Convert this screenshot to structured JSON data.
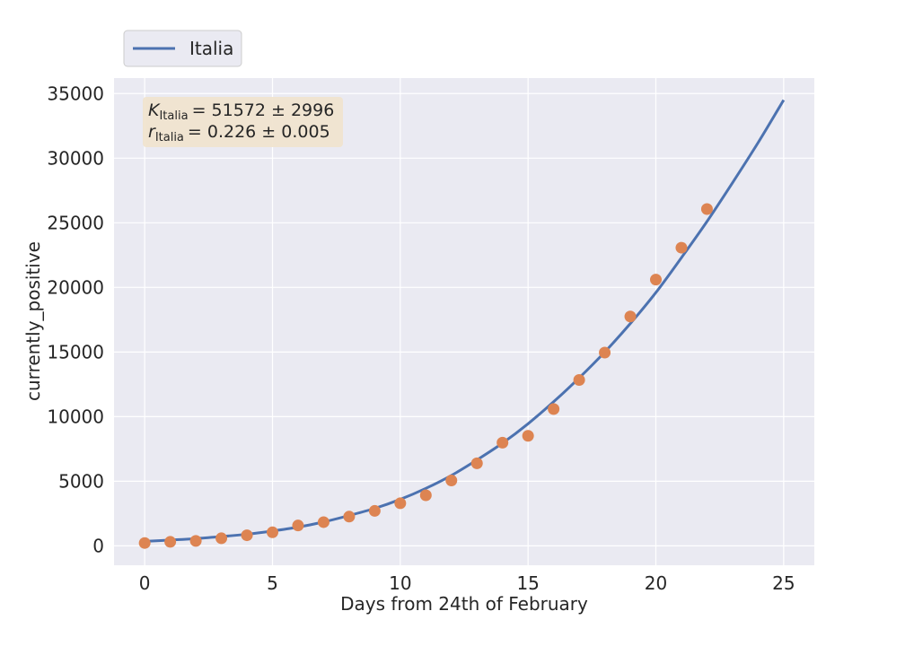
{
  "chart_data": {
    "type": "line",
    "title": "",
    "xlabel": "Days from 24th of February",
    "ylabel": "currently_positive",
    "xlim": [
      -1.2,
      26.2
    ],
    "ylim": [
      -1500,
      36200
    ],
    "xticks": [
      0,
      5,
      10,
      15,
      20,
      25
    ],
    "yticks": [
      0,
      5000,
      10000,
      15000,
      20000,
      25000,
      30000,
      35000
    ],
    "grid": true,
    "legend": {
      "placement": "top-left (outside, above plot)",
      "entries": [
        "Italia"
      ]
    },
    "colors": {
      "background": "#eaeaf2",
      "grid": "#ffffff",
      "fit_line": "#4c72b0",
      "points": "#dd8452",
      "annotation_box": "#f0e4cf"
    },
    "series": [
      {
        "name": "Italia",
        "kind": "line",
        "x": [
          0,
          1,
          2,
          3,
          4,
          5,
          6,
          7,
          8,
          9,
          10,
          11,
          12,
          13,
          14,
          15,
          16,
          17,
          18,
          19,
          20,
          21,
          22,
          23,
          24,
          25
        ],
        "y": [
          350,
          450,
          560,
          720,
          900,
          1150,
          1450,
          1850,
          2350,
          2900,
          3600,
          4450,
          5450,
          6650,
          7950,
          9450,
          11150,
          13000,
          15000,
          17200,
          19600,
          22300,
          25100,
          28100,
          31200,
          34500
        ]
      },
      {
        "name": "",
        "kind": "scatter",
        "x": [
          0,
          1,
          2,
          3,
          4,
          5,
          6,
          7,
          8,
          9,
          10,
          11,
          12,
          13,
          14,
          15,
          16,
          17,
          18,
          19,
          20,
          21,
          22
        ],
        "y": [
          221,
          311,
          385,
          588,
          821,
          1049,
          1577,
          1835,
          2263,
          2706,
          3296,
          3916,
          5061,
          6387,
          7985,
          8514,
          10590,
          12839,
          14955,
          17750,
          20603,
          23073,
          26062
        ]
      }
    ],
    "annotation": {
      "k_symbol": "K",
      "k_sub": "Italia",
      "k_value": "= 51572 ± 2996",
      "r_symbol": "r",
      "r_sub": "Italia",
      "r_value": "= 0.226 ± 0.005"
    }
  }
}
